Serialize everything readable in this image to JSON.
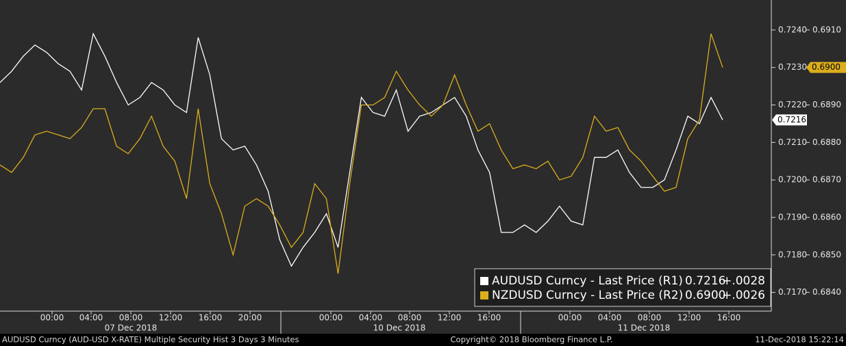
{
  "chart_data": {
    "type": "line",
    "x_tick_labels": [
      "00:00",
      "04:00",
      "08:00",
      "12:00",
      "16:00",
      "20:00",
      "00:00",
      "04:00",
      "08:00",
      "12:00",
      "16:00",
      "00:00",
      "04:00",
      "08:00",
      "12:00",
      "16:00"
    ],
    "date_labels": [
      "07 Dec 2018",
      "10 Dec 2018",
      "11 Dec 2018"
    ],
    "ylim": [
      0.7165,
      0.7248
    ],
    "yticks": [
      {
        "value": 0.717,
        "label": "0.7170"
      },
      {
        "value": 0.718,
        "label": "0.7180"
      },
      {
        "value": 0.719,
        "label": "0.7190"
      },
      {
        "value": 0.72,
        "label": "0.7200"
      },
      {
        "value": 0.721,
        "label": "0.7210"
      },
      {
        "value": 0.722,
        "label": "0.7220"
      },
      {
        "value": 0.723,
        "label": "0.7230"
      },
      {
        "value": 0.724,
        "label": "0.7240"
      }
    ],
    "y2lim": [
      0.6835,
      0.6918
    ],
    "y2ticks": [
      {
        "value": 0.684,
        "label": "0.6840"
      },
      {
        "value": 0.685,
        "label": "0.6850"
      },
      {
        "value": 0.686,
        "label": "0.6860"
      },
      {
        "value": 0.687,
        "label": "0.6870"
      },
      {
        "value": 0.688,
        "label": "0.6880"
      },
      {
        "value": 0.689,
        "label": "0.6890"
      },
      {
        "value": 0.69,
        "label": "0.6900"
      },
      {
        "value": 0.691,
        "label": "0.6910"
      }
    ],
    "series": [
      {
        "name": "AUDUSD Curncy - Last Price (R1)",
        "color": "#ffffff",
        "axis": "y",
        "change": "+.0028",
        "values": [
          0.7226,
          0.7229,
          0.7233,
          0.7236,
          0.7234,
          0.7231,
          0.7229,
          0.7224,
          0.7239,
          0.7233,
          0.7226,
          0.722,
          0.7222,
          0.7226,
          0.7224,
          0.722,
          0.7218,
          0.7238,
          0.7228,
          0.7211,
          0.7208,
          0.7209,
          0.7204,
          0.7197,
          0.7184,
          0.7177,
          0.7182,
          0.7186,
          0.7191,
          0.7182,
          0.7202,
          0.7222,
          0.7218,
          0.7217,
          0.7224,
          0.7213,
          0.7217,
          0.7218,
          0.722,
          0.7222,
          0.7217,
          0.7208,
          0.7202,
          0.7186,
          0.7186,
          0.7188,
          0.7186,
          0.7189,
          0.7193,
          0.7189,
          0.7188,
          0.7206,
          0.7206,
          0.7208,
          0.7202,
          0.7198,
          0.7198,
          0.72,
          0.7208,
          0.7217,
          0.7215,
          0.7222,
          0.7216
        ]
      },
      {
        "name": "NZDUSD Curncy - Last Price (R2)",
        "color": "#dcae1d",
        "axis": "y2",
        "change": "+.0026",
        "values": [
          0.6874,
          0.6872,
          0.6876,
          0.6882,
          0.6883,
          0.6882,
          0.6881,
          0.6884,
          0.6889,
          0.6889,
          0.6879,
          0.6877,
          0.6881,
          0.6887,
          0.6879,
          0.6875,
          0.6865,
          0.6889,
          0.6869,
          0.6861,
          0.685,
          0.6863,
          0.6865,
          0.6863,
          0.6858,
          0.6852,
          0.6856,
          0.6869,
          0.6865,
          0.6845,
          0.6869,
          0.689,
          0.689,
          0.6892,
          0.6899,
          0.6894,
          0.689,
          0.6887,
          0.689,
          0.6898,
          0.689,
          0.6883,
          0.6885,
          0.6878,
          0.6873,
          0.6874,
          0.6873,
          0.6875,
          0.687,
          0.6871,
          0.6876,
          0.6887,
          0.6883,
          0.6884,
          0.6878,
          0.6875,
          0.6871,
          0.6867,
          0.6868,
          0.6881,
          0.6886,
          0.6909,
          0.69
        ],
        "value_labels": [
          null,
          null,
          null,
          null,
          null,
          null,
          null,
          null,
          null,
          null,
          null,
          null,
          null,
          null,
          null,
          null,
          null,
          null,
          null,
          null,
          null,
          null,
          null,
          null,
          null,
          null,
          null,
          null,
          null,
          null,
          null,
          null,
          null,
          null,
          null,
          null,
          null,
          null,
          null,
          null,
          null,
          null,
          null,
          null,
          null,
          null,
          null,
          null,
          null,
          null,
          null,
          null,
          null,
          null,
          null,
          null,
          null,
          null,
          null,
          null,
          null,
          null,
          "0.6900"
        ]
      }
    ]
  },
  "footer": {
    "left": "AUDUSD Curncy (AUD-USD X-RATE) Multiple Security Hist  3 Days 3 Minutes",
    "center": "Copyright© 2018 Bloomberg Finance L.P.",
    "right": "11-Dec-2018 15:22:14"
  }
}
